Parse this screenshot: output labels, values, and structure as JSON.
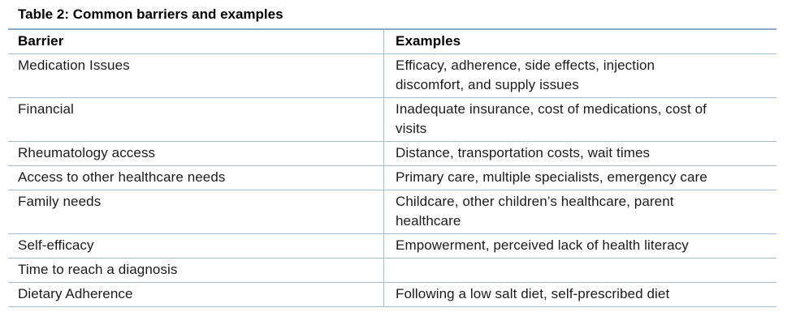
{
  "caption": "Table 2: Common barriers and examples",
  "table": {
    "headers": [
      "Barrier",
      "Examples"
    ],
    "rows": [
      {
        "barrier": "Medication Issues",
        "examples": "Efficacy, adherence, side effects, injection\ndiscomfort, and supply issues"
      },
      {
        "barrier": "Financial",
        "examples": "Inadequate insurance, cost of medications, cost of\nvisits"
      },
      {
        "barrier": "Rheumatology access",
        "examples": "Distance, transportation costs, wait times"
      },
      {
        "barrier": "Access to other healthcare needs",
        "examples": "Primary care, multiple specialists, emergency care"
      },
      {
        "barrier": "Family needs",
        "examples": "Childcare, other children’s healthcare, parent\nhealthcare"
      },
      {
        "barrier": "Self-efficacy",
        "examples": "Empowerment, perceived lack of health literacy"
      },
      {
        "barrier": "Time to reach a diagnosis",
        "examples": ""
      },
      {
        "barrier": "Dietary Adherence",
        "examples": "Following a low salt diet, self-prescribed diet"
      }
    ]
  },
  "colors": {
    "top_border": "#8EA9CC",
    "grid_line": "#A3BCD1",
    "text": "#1b1b1b"
  }
}
